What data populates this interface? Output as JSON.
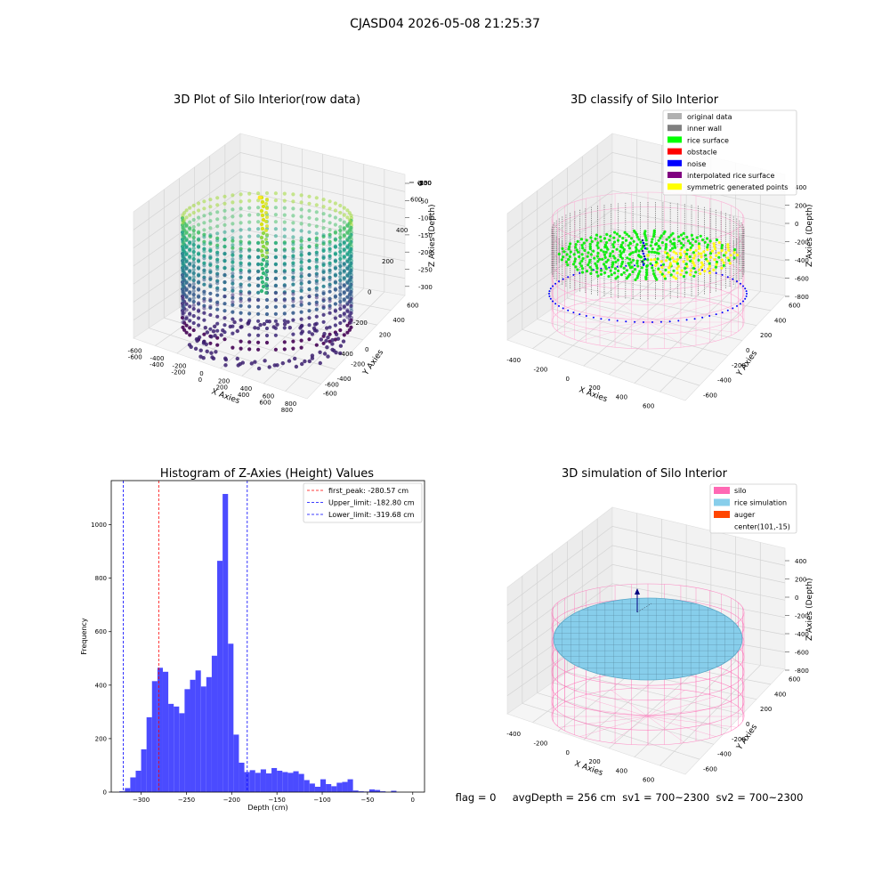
{
  "suptitle": "CJASD04 2026-05-08 21:25:37",
  "colors": {
    "hist_bar": "#4b4bff",
    "peak_line": "#ff0000",
    "limit_line": "#0000ff",
    "silo_pink": "#ff69b4",
    "rice_blue": "#87ceeb",
    "auger_orange": "#ff4500",
    "pane_bg": "#f0f0f0"
  },
  "plot1": {
    "title": "3D Plot of Silo Interior(row data)",
    "xlabel": "X Axies",
    "ylabel": "Y Axies",
    "zlabel": "Z Axies (Depth)",
    "xticks": [
      "-600",
      "-400",
      "-200",
      "0",
      "200",
      "400",
      "600",
      "800"
    ],
    "yticks": [
      "-600",
      "-400",
      "-200",
      "0",
      "200",
      "400",
      "600"
    ],
    "zticks": [
      "0",
      "-50",
      "-100",
      "-150",
      "-200",
      "-250",
      "-300"
    ]
  },
  "plot2": {
    "title": "3D classify of Silo Interior",
    "xlabel": "X Axies",
    "ylabel": "Y Axies",
    "zlabel": "Z Axies (Depth)",
    "xticks": [
      "-400",
      "-200",
      "0",
      "200",
      "400",
      "600"
    ],
    "yticks": [
      "-600",
      "-400",
      "-200",
      "0",
      "200",
      "400",
      "600"
    ],
    "zticks": [
      "400",
      "200",
      "0",
      "-200",
      "-400",
      "-600",
      "-800"
    ],
    "legend": [
      {
        "label": "original data",
        "color": "#b0b0b0"
      },
      {
        "label": "inner wall",
        "color": "#808080"
      },
      {
        "label": "rice surface",
        "color": "#00ff00"
      },
      {
        "label": "obstacle",
        "color": "#ff0000"
      },
      {
        "label": "noise",
        "color": "#0000ff"
      },
      {
        "label": "interpolated rice surface",
        "color": "#800080"
      },
      {
        "label": "symmetric generated points",
        "color": "#ffff00"
      }
    ]
  },
  "plot4": {
    "title": "3D simulation of Silo Interior",
    "xlabel": "X Axies",
    "ylabel": "Y Axies",
    "zlabel": "Z Axies (Depth)",
    "xticks": [
      "-400",
      "-200",
      "0",
      "200",
      "400",
      "600"
    ],
    "yticks": [
      "-600",
      "-400",
      "-200",
      "0",
      "200",
      "400",
      "600"
    ],
    "zticks": [
      "400",
      "200",
      "0",
      "-200",
      "-400",
      "-600",
      "-800"
    ],
    "legend": [
      {
        "label": "silo",
        "color": "#ff69b4"
      },
      {
        "label": "rice simulation",
        "color": "#87ceeb"
      },
      {
        "label": "auger",
        "color": "#ff4500"
      },
      {
        "label": "center(101,-15)",
        "color": ""
      }
    ]
  },
  "status_text": "flag = 0     avgDepth = 256 cm  sv1 = 700~2300  sv2 = 700~2300",
  "chart_data": {
    "type": "bar",
    "title": "Histogram of Z-Axies (Height) Values",
    "xlabel": "Depth (cm)",
    "ylabel": "Frequency",
    "xlim": [
      -333,
      13
    ],
    "ylim": [
      0,
      1165
    ],
    "xticks": [
      -300,
      -250,
      -200,
      -150,
      -100,
      -50,
      0
    ],
    "yticks": [
      0,
      200,
      400,
      600,
      800,
      1000
    ],
    "bin_edges": [
      -324,
      -318,
      -312,
      -306,
      -300,
      -294,
      -288,
      -282,
      -276,
      -270,
      -264,
      -258,
      -252,
      -246,
      -240,
      -234,
      -228,
      -222,
      -216,
      -210,
      -204,
      -198,
      -192,
      -186,
      -180,
      -174,
      -168,
      -162,
      -156,
      -150,
      -144,
      -138,
      -132,
      -126,
      -120,
      -114,
      -108,
      -102,
      -96,
      -90,
      -84,
      -78,
      -72,
      -66,
      -60,
      -54,
      -48,
      -42,
      -36,
      -30,
      -24,
      -18,
      -12,
      -6,
      0
    ],
    "values": [
      3,
      15,
      55,
      80,
      160,
      280,
      415,
      465,
      450,
      330,
      320,
      295,
      385,
      420,
      455,
      395,
      430,
      510,
      865,
      1115,
      555,
      215,
      110,
      75,
      82,
      72,
      85,
      70,
      90,
      80,
      75,
      72,
      78,
      68,
      45,
      32,
      20,
      48,
      30,
      22,
      35,
      38,
      48,
      6,
      3,
      2,
      10,
      8,
      3,
      0,
      5,
      0,
      0,
      0
    ],
    "vlines": [
      {
        "name": "first_peak: -280.57 cm",
        "x": -280.57,
        "color": "#ff0000"
      },
      {
        "name": "Upper_limit: -182.80 cm",
        "x": -182.8,
        "color": "#0000ff"
      },
      {
        "name": "Lower_limit: -319.68 cm",
        "x": -319.68,
        "color": "#0000ff"
      }
    ],
    "legend_position": "upper right"
  }
}
